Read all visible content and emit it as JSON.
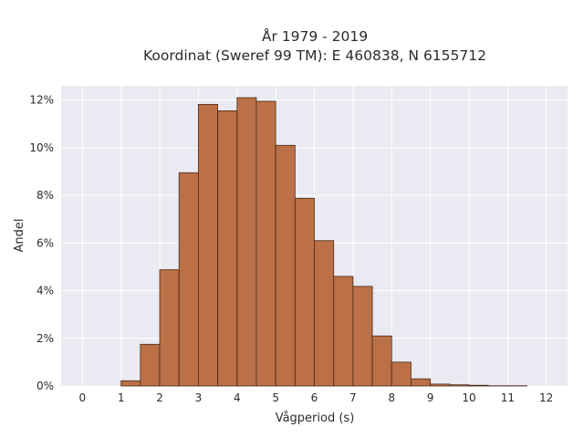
{
  "chart_data": {
    "type": "bar",
    "title_lines": [
      "År 1979 - 2019",
      "Koordinat (Sweref 99 TM): E 460838, N 6155712"
    ],
    "xlabel": "Vågperiod (s)",
    "ylabel": "Andel",
    "bin_width": 0.5,
    "bin_starts": [
      0,
      0.5,
      1,
      1.5,
      2,
      2.5,
      3,
      3.5,
      4,
      4.5,
      5,
      5.5,
      6,
      6.5,
      7,
      7.5,
      8,
      8.5,
      9,
      9.5,
      10,
      10.5,
      11,
      11.5
    ],
    "values": [
      0.0,
      0.0,
      0.22,
      1.75,
      4.88,
      8.95,
      11.82,
      11.55,
      12.1,
      11.95,
      10.1,
      7.88,
      6.1,
      4.6,
      4.18,
      2.1,
      1.0,
      0.3,
      0.08,
      0.05,
      0.03,
      0.01,
      0.01,
      0.0
    ],
    "xlim": [
      -0.55,
      12.55
    ],
    "ylim": [
      0,
      12.6
    ],
    "xticks": [
      0,
      1,
      2,
      3,
      4,
      5,
      6,
      7,
      8,
      9,
      10,
      11,
      12
    ],
    "xtick_labels": [
      "0",
      "1",
      "2",
      "3",
      "4",
      "5",
      "6",
      "7",
      "8",
      "9",
      "10",
      "11",
      "12"
    ],
    "yticks": [
      0,
      2,
      4,
      6,
      8,
      10,
      12
    ],
    "ytick_labels": [
      "0%",
      "2%",
      "4%",
      "6%",
      "8%",
      "10%",
      "12%"
    ],
    "grid": true,
    "legend": "none",
    "colors": {
      "bar_fill": "#b8693d",
      "bar_edge": "#4a2a18",
      "plot_background": "#eaeaf2",
      "grid": "#ffffff"
    }
  }
}
